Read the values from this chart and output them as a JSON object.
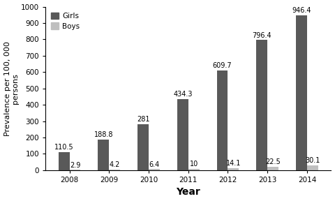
{
  "years": [
    "2008",
    "2009",
    "2010",
    "2011",
    "2012",
    "2013",
    "2014"
  ],
  "girls": [
    110.5,
    188.8,
    281,
    434.3,
    609.7,
    796.4,
    946.4
  ],
  "boys": [
    2.9,
    4.2,
    6.4,
    10,
    14.1,
    22.5,
    30.1
  ],
  "girls_color": "#595959",
  "boys_color": "#bfbfbf",
  "ylabel": "Prevalence per 100, 000\npersons",
  "xlabel": "Year",
  "ylim": [
    0,
    1000
  ],
  "yticks": [
    0,
    100,
    200,
    300,
    400,
    500,
    600,
    700,
    800,
    900,
    1000
  ],
  "legend_girls": "Girls",
  "legend_boys": "Boys",
  "bar_width": 0.28,
  "label_fontsize": 8,
  "tick_fontsize": 7.5,
  "annotation_fontsize": 7,
  "xlabel_fontsize": 10
}
